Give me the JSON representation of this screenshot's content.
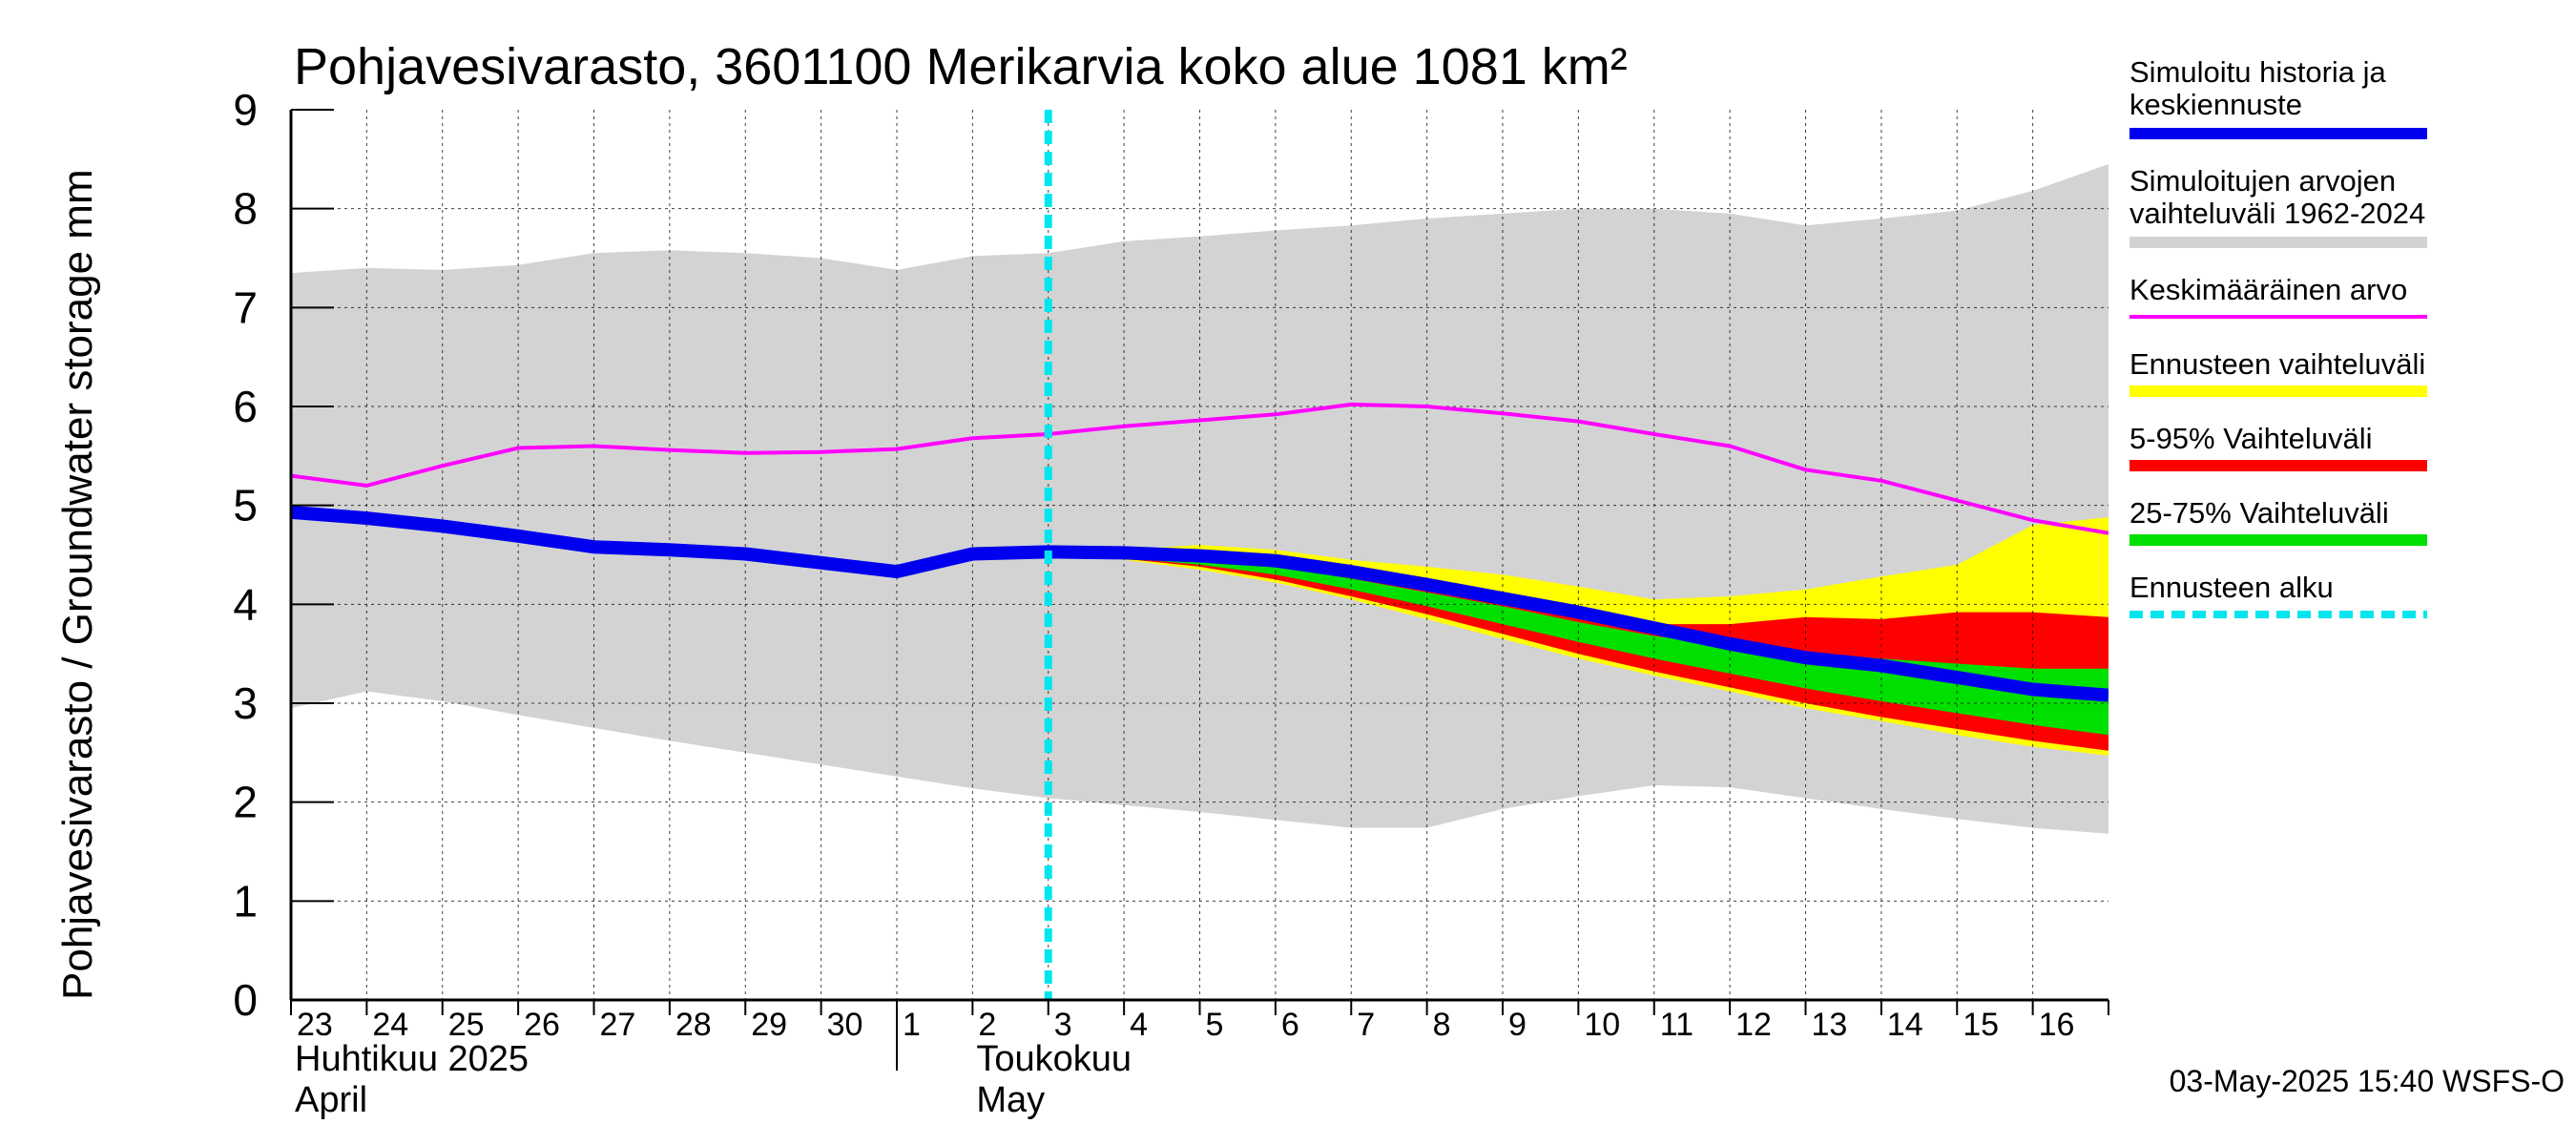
{
  "chart_data": {
    "type": "area",
    "title": "Pohjavesivarasto, 3601100 Merikarvia koko alue 1081 km²",
    "ylabel": "Pohjavesivarasto / Groundwater storage   mm",
    "ylim": [
      0,
      9
    ],
    "yticks": [
      "0",
      "1",
      "2",
      "3",
      "4",
      "5",
      "6",
      "7",
      "8",
      "9"
    ],
    "xlim": [
      0,
      24
    ],
    "day_labels": [
      "23",
      "24",
      "25",
      "26",
      "27",
      "28",
      "29",
      "30",
      "1",
      "2",
      "3",
      "4",
      "5",
      "6",
      "7",
      "8",
      "9",
      "10",
      "11",
      "12",
      "13",
      "14",
      "15",
      "16"
    ],
    "month_labels": [
      {
        "name": "Huhtikuu 2025",
        "english": "April",
        "x": 0
      },
      {
        "name": "Toukokuu",
        "english": "May",
        "x": 9
      }
    ],
    "month_separator_x": 8,
    "forecast_start_x": 10.0,
    "timestamp": "03-May-2025 15:40 WSFS-O",
    "x": [
      0,
      1,
      2,
      3,
      4,
      5,
      6,
      7,
      8,
      9,
      10,
      11,
      12,
      13,
      14,
      15,
      16,
      17,
      18,
      19,
      20,
      21,
      22,
      23,
      24
    ],
    "series": [
      {
        "name": "Simuloitujen arvojen vaihteluväli 1962-2024",
        "kind": "band",
        "color": "#d3d3d3",
        "upper": [
          7.35,
          7.4,
          7.38,
          7.43,
          7.55,
          7.58,
          7.55,
          7.5,
          7.38,
          7.52,
          7.55,
          7.67,
          7.72,
          7.78,
          7.83,
          7.9,
          7.95,
          8.0,
          8.0,
          7.95,
          7.83,
          7.9,
          7.98,
          8.18,
          8.45
        ],
        "lower": [
          2.95,
          3.12,
          3.02,
          2.88,
          2.75,
          2.62,
          2.5,
          2.38,
          2.26,
          2.14,
          2.04,
          1.97,
          1.9,
          1.82,
          1.74,
          1.74,
          1.93,
          2.06,
          2.17,
          2.15,
          2.04,
          1.93,
          1.83,
          1.74,
          1.68
        ]
      },
      {
        "name": "Ennusteen vaihteluväli",
        "kind": "band",
        "color": "#ffff00",
        "upper": [
          null,
          null,
          null,
          null,
          null,
          null,
          null,
          null,
          null,
          null,
          4.52,
          4.55,
          4.6,
          4.55,
          4.45,
          4.38,
          4.3,
          4.18,
          4.05,
          4.08,
          4.15,
          4.28,
          4.4,
          4.8,
          4.88
        ],
        "lower": [
          null,
          null,
          null,
          null,
          null,
          null,
          null,
          null,
          null,
          null,
          4.52,
          4.45,
          4.35,
          4.22,
          4.05,
          3.85,
          3.65,
          3.45,
          3.28,
          3.12,
          2.95,
          2.82,
          2.68,
          2.56,
          2.47
        ]
      },
      {
        "name": "5-95% Vaihteluväli",
        "kind": "band",
        "color": "#ff0000",
        "upper": [
          null,
          null,
          null,
          null,
          null,
          null,
          null,
          null,
          null,
          null,
          4.52,
          4.5,
          4.48,
          4.42,
          4.3,
          4.18,
          4.06,
          3.92,
          3.8,
          3.8,
          3.87,
          3.85,
          3.92,
          3.92,
          3.87
        ],
        "lower": [
          null,
          null,
          null,
          null,
          null,
          null,
          null,
          null,
          null,
          null,
          4.52,
          4.46,
          4.38,
          4.25,
          4.08,
          3.9,
          3.7,
          3.5,
          3.32,
          3.16,
          3.0,
          2.86,
          2.74,
          2.62,
          2.52
        ]
      },
      {
        "name": "25-75% Vaihteluväli",
        "kind": "band",
        "color": "#00e000",
        "upper": [
          null,
          null,
          null,
          null,
          null,
          null,
          null,
          null,
          null,
          null,
          4.52,
          4.49,
          4.46,
          4.38,
          4.26,
          4.12,
          3.98,
          3.82,
          3.68,
          3.58,
          3.52,
          3.45,
          3.4,
          3.35,
          3.35
        ],
        "lower": [
          null,
          null,
          null,
          null,
          null,
          null,
          null,
          null,
          null,
          null,
          4.52,
          4.47,
          4.4,
          4.3,
          4.15,
          3.98,
          3.8,
          3.62,
          3.45,
          3.3,
          3.15,
          3.02,
          2.9,
          2.78,
          2.68
        ]
      },
      {
        "name": "Keskimääräinen arvo",
        "kind": "line",
        "color": "#ff00ff",
        "values": [
          5.3,
          5.2,
          5.4,
          5.58,
          5.6,
          5.56,
          5.53,
          5.54,
          5.57,
          5.68,
          5.72,
          5.8,
          5.86,
          5.92,
          6.02,
          6.0,
          5.93,
          5.85,
          5.72,
          5.6,
          5.36,
          5.25,
          5.05,
          4.85,
          4.72
        ]
      },
      {
        "name": "Simuloitu historia ja keskiennuste",
        "kind": "line",
        "color": "#0000ee",
        "values": [
          4.93,
          4.87,
          4.79,
          4.69,
          4.58,
          4.55,
          4.51,
          4.42,
          4.33,
          4.51,
          4.53,
          4.52,
          4.49,
          4.44,
          4.33,
          4.2,
          4.06,
          3.92,
          3.76,
          3.6,
          3.46,
          3.38,
          3.26,
          3.14,
          3.08
        ]
      }
    ],
    "legend": [
      {
        "text": "Simuloitu historia ja",
        "text2": "keskiennuste",
        "color": "#0000ee",
        "style": "thick"
      },
      {
        "text": "Simuloitujen arvojen",
        "text2": "vaihteluväli 1962-2024",
        "color": "#d3d3d3",
        "style": "thick"
      },
      {
        "text": "Keskimääräinen arvo",
        "color": "#ff00ff",
        "style": "thin"
      },
      {
        "text": "Ennusteen vaihteluväli",
        "color": "#ffff00",
        "style": "thick"
      },
      {
        "text": "5-95% Vaihteluväli",
        "color": "#ff0000",
        "style": "thick"
      },
      {
        "text": "25-75% Vaihteluväli",
        "color": "#00e000",
        "style": "thick"
      },
      {
        "text": "Ennusteen alku",
        "color": "#00e5ee",
        "style": "dashed"
      }
    ]
  }
}
